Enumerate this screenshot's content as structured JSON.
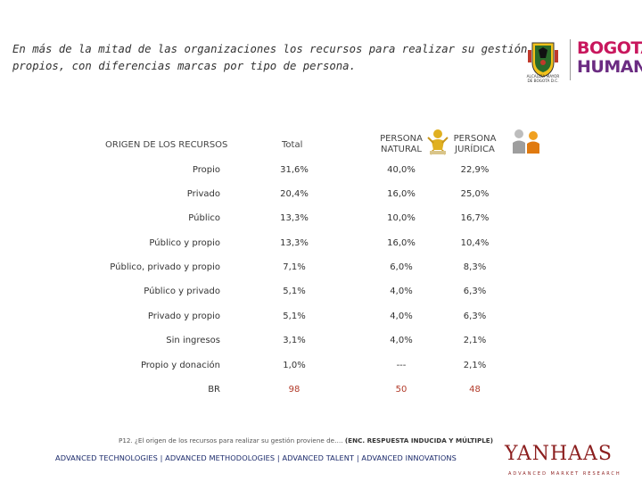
{
  "headline": {
    "line1": "En más de la mitad de las organizaciones los recursos para realizar su gestión son",
    "line2": "propios, con diferencias marcas por tipo de persona."
  },
  "logos": {
    "alcaldia_text_1": "ALCALDÍA MAYOR",
    "alcaldia_text_2": "DE BOGOTÁ D.C.",
    "bogota_line1": "BOGOTÁ",
    "bogota_line2": "HUMANA"
  },
  "table": {
    "header": {
      "row_label": "ORIGEN DE LOS RECURSOS",
      "total": "Total",
      "natural_1": "PERSONA",
      "natural_2": "NATURAL",
      "juridica_1": "PERSONA",
      "juridica_2": "JURÍDICA"
    },
    "rows": [
      {
        "label": "Propio",
        "total": "31,6%",
        "natural": "40,0%",
        "juridica": "22,9%"
      },
      {
        "label": "Privado",
        "total": "20,4%",
        "natural": "16,0%",
        "juridica": "25,0%"
      },
      {
        "label": "Público",
        "total": "13,3%",
        "natural": "10,0%",
        "juridica": "16,7%"
      },
      {
        "label": "Público y propio",
        "total": "13,3%",
        "natural": "16,0%",
        "juridica": "10,4%"
      },
      {
        "label": "Público, privado y propio",
        "total": "7,1%",
        "natural": "6,0%",
        "juridica": "8,3%"
      },
      {
        "label": "Público y privado",
        "total": "5,1%",
        "natural": "4,0%",
        "juridica": "6,3%"
      },
      {
        "label": "Privado y propio",
        "total": "5,1%",
        "natural": "4,0%",
        "juridica": "6,3%"
      },
      {
        "label": "Sin ingresos",
        "total": "3,1%",
        "natural": "4,0%",
        "juridica": "2,1%"
      },
      {
        "label": "Propio y donación",
        "total": "1,0%",
        "natural": "---",
        "juridica": "2,1%"
      },
      {
        "label": "BR",
        "total": "98",
        "natural": "50",
        "juridica": "48"
      }
    ]
  },
  "footnote": {
    "question": "P12. ¿El origen de los recursos para realizar su gestión proviene de….",
    "note": "(ENC. RESPUESTA INDUCIDA Y MÚLTIPLE)"
  },
  "footer": {
    "tagline": "ADVANCED TECHNOLOGIES  |  ADVANCED METHODOLOGIES  |  ADVANCED TALENT  |  ADVANCED INNOVATIONS",
    "brand": "YANHAAS",
    "brand_sub": "ADVANCED MARKET RESEARCH"
  },
  "colors": {
    "brand_red": "#8c1f1f",
    "base_red": "#b23b2a",
    "bogota_pink": "#c8175d",
    "bogota_purple": "#6b2c82",
    "tagline_blue": "#1b2a6b"
  }
}
